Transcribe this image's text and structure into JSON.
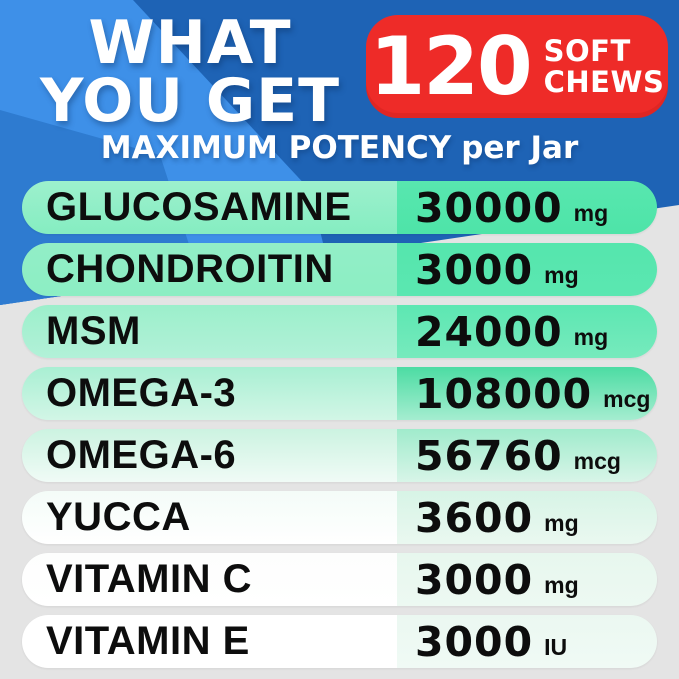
{
  "header": {
    "title_line1": "WHAT",
    "title_line2": "YOU GET",
    "badge": {
      "count": "120",
      "word_line1": "SOFT",
      "word_line2": "CHEWS"
    },
    "subtitle": {
      "emphasis": "MAXIMUM POTENCY",
      "suffix": "per Jar"
    }
  },
  "table": {
    "rows": [
      {
        "label": "GLUCOSAMINE",
        "value": "30000",
        "unit": "mg",
        "colors": {
          "lt": "#9df0cd",
          "lb": "#85edc1",
          "rt": "#58e7af",
          "rb": "#4ee4a8"
        }
      },
      {
        "label": "CHONDROITIN",
        "value": "3000",
        "unit": "mg",
        "colors": {
          "lt": "#92eec7",
          "lb": "#8ceec3",
          "rt": "#55e6ad",
          "rb": "#5be7b1"
        }
      },
      {
        "label": "MSM",
        "value": "24000",
        "unit": "mg",
        "colors": {
          "lt": "#9cefcb",
          "lb": "#b2f1d8",
          "rt": "#5de7b2",
          "rb": "#76eabd"
        }
      },
      {
        "label": "OMEGA-3",
        "value": "108000",
        "unit": "mcg",
        "colors": {
          "lt": "#a9efd3",
          "lb": "#d2f6e6",
          "rt": "#4cdca3",
          "rb": "#a5edd0"
        }
      },
      {
        "label": "OMEGA-6",
        "value": "56760",
        "unit": "mcg",
        "colors": {
          "lt": "#ccf3e1",
          "lb": "#f0fbf6",
          "rt": "#a0ebcc",
          "rb": "#d8f5e8"
        }
      },
      {
        "label": "YUCCA",
        "value": "3600",
        "unit": "mg",
        "colors": {
          "lt": "#f4fcf8",
          "lb": "#ffffff",
          "rt": "#d7f4e6",
          "rb": "#eaf8f0"
        }
      },
      {
        "label": "VITAMIN C",
        "value": "3000",
        "unit": "mg",
        "colors": {
          "lt": "#fdfefd",
          "lb": "#ffffff",
          "rt": "#e7f7ee",
          "rb": "#edf9f2"
        }
      },
      {
        "label": "VITAMIN E",
        "value": "3000",
        "unit": "IU",
        "colors": {
          "lt": "#ffffff",
          "lb": "#ffffff",
          "rt": "#ebf8f1",
          "rb": "#f0faf5"
        }
      }
    ]
  },
  "palette": {
    "blue-dark": "#1e63b5",
    "blue-mid": "#2e7bd0",
    "blue-light": "#3e90e8",
    "badge-red": "#ee2b28",
    "bg-gray": "#e4e4e4",
    "row-text": "#0d0d0d",
    "header-text": "#ffffff"
  }
}
